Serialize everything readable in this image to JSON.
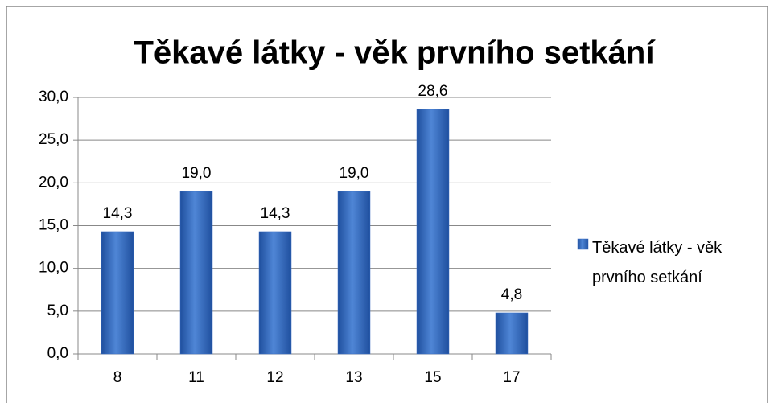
{
  "chart_data": {
    "type": "bar",
    "title": "Těkavé látky - věk prvního setkání",
    "categories": [
      "8",
      "11",
      "12",
      "13",
      "15",
      "17"
    ],
    "series": [
      {
        "name": "Těkavé látky - věk prvního setkání",
        "color": "#3a6fc4",
        "values": [
          14.3,
          19.0,
          14.3,
          19.0,
          28.6,
          4.8
        ],
        "value_labels": [
          "14,3",
          "19,0",
          "14,3",
          "19,0",
          "28,6",
          "4,8"
        ]
      }
    ],
    "ylim": [
      0,
      30
    ],
    "yticks": [
      {
        "value": 0,
        "label": "0,0"
      },
      {
        "value": 5,
        "label": "5,0"
      },
      {
        "value": 10,
        "label": "10,0"
      },
      {
        "value": 15,
        "label": "15,0"
      },
      {
        "value": 20,
        "label": "20,0"
      },
      {
        "value": 25,
        "label": "25,0"
      },
      {
        "value": 30,
        "label": "30,0"
      }
    ],
    "grid": true,
    "legend": "right"
  }
}
